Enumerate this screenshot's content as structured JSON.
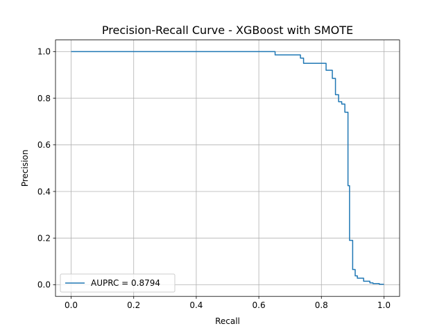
{
  "chart_data": {
    "type": "line",
    "title": "Precision-Recall Curve - XGBoost with SMOTE",
    "xlabel": "Recall",
    "ylabel": "Precision",
    "xlim": [
      -0.05,
      1.05
    ],
    "ylim": [
      -0.05,
      1.05
    ],
    "xticks": [
      0.0,
      0.2,
      0.4,
      0.6,
      0.8,
      1.0
    ],
    "xtick_labels": [
      "0.0",
      "0.2",
      "0.4",
      "0.6",
      "0.8",
      "1.0"
    ],
    "yticks": [
      0.0,
      0.2,
      0.4,
      0.6,
      0.8,
      1.0
    ],
    "ytick_labels": [
      "0.0",
      "0.2",
      "0.4",
      "0.6",
      "0.8",
      "1.0"
    ],
    "grid": true,
    "legend": {
      "position": "lower-left"
    },
    "series": [
      {
        "name": "AUPRC = 0.8794",
        "color": "#1f77b4",
        "step": true,
        "x": [
          0.0,
          0.652,
          0.652,
          0.733,
          0.733,
          0.743,
          0.743,
          0.815,
          0.815,
          0.835,
          0.835,
          0.845,
          0.845,
          0.855,
          0.855,
          0.865,
          0.865,
          0.875,
          0.875,
          0.885,
          0.885,
          0.89,
          0.89,
          0.9,
          0.9,
          0.908,
          0.908,
          0.915,
          0.915,
          0.935,
          0.935,
          0.955,
          0.955,
          0.965,
          0.965,
          0.985,
          0.985,
          1.0
        ],
        "y": [
          1.0,
          1.0,
          0.986,
          0.986,
          0.972,
          0.972,
          0.95,
          0.95,
          0.92,
          0.92,
          0.885,
          0.885,
          0.815,
          0.815,
          0.785,
          0.785,
          0.775,
          0.775,
          0.74,
          0.74,
          0.425,
          0.425,
          0.19,
          0.19,
          0.065,
          0.065,
          0.038,
          0.038,
          0.028,
          0.028,
          0.015,
          0.015,
          0.008,
          0.008,
          0.005,
          0.005,
          0.002,
          0.002
        ]
      }
    ]
  }
}
